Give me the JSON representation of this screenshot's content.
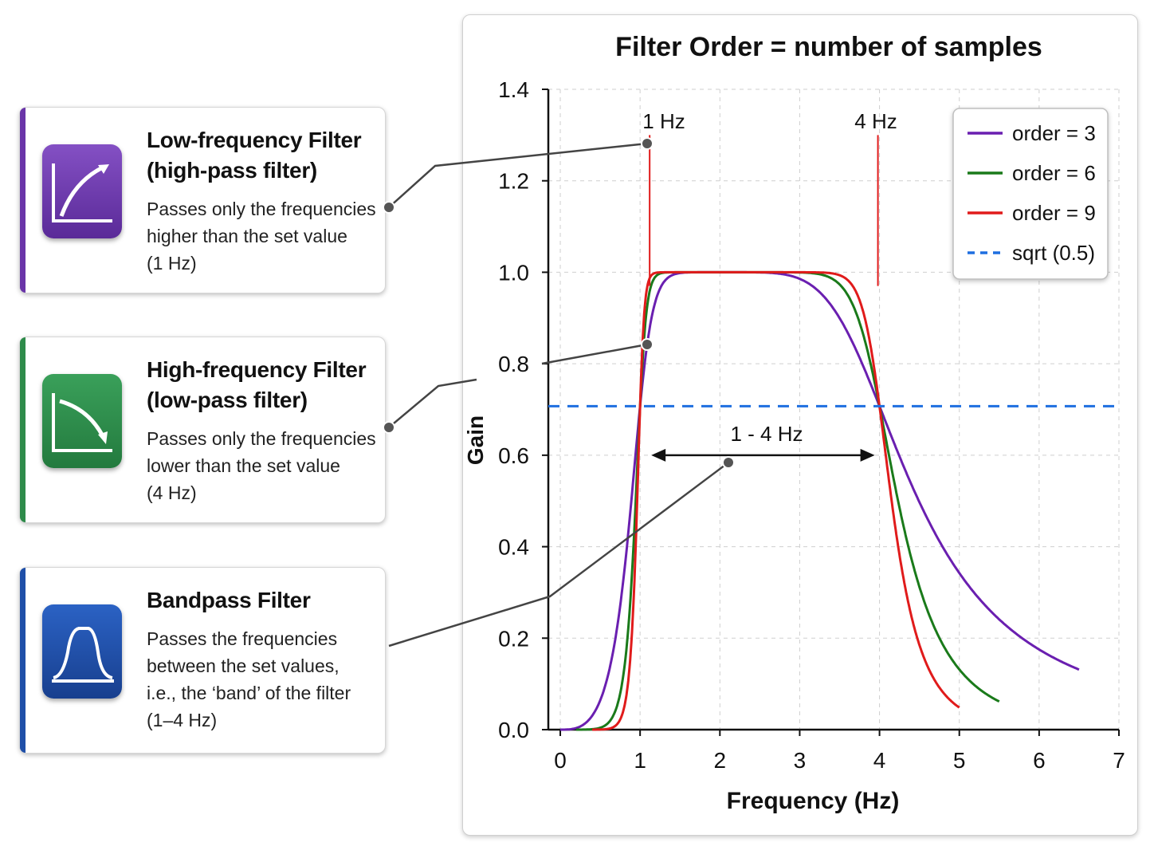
{
  "cards": [
    {
      "title_line1": "Low-frequency Filter",
      "title_line2": "(high-pass filter)",
      "desc": [
        "Passes only the frequencies",
        "higher than the set value",
        "(1 Hz)"
      ],
      "color": "#6a35a8",
      "icon": "rising-curve-icon"
    },
    {
      "title_line1": "High-frequency Filter",
      "title_line2": "(low-pass filter)",
      "desc": [
        "Passes only the frequencies",
        "lower than the set value",
        "(4 Hz)"
      ],
      "color": "#2e8b4a",
      "icon": "falling-curve-icon"
    },
    {
      "title_line1": "Bandpass Filter",
      "desc": [
        "Passes the frequencies",
        "between the set values,",
        "i.e., the ‘band’ of the filter",
        "(1–4 Hz)"
      ],
      "color": "#1f4fa8",
      "icon": "bandpass-shape-icon"
    }
  ],
  "chart_data": {
    "type": "line",
    "title": "Filter Order = number of samples",
    "xlabel": "Frequency (Hz)",
    "ylabel": "Gain",
    "xlim": [
      -0.15,
      7
    ],
    "ylim": [
      0,
      1.4
    ],
    "xticks": [
      "0",
      "1",
      "2",
      "3",
      "4",
      "5",
      "6",
      "7"
    ],
    "yticks": [
      "0.0",
      "0.2",
      "0.4",
      "0.6",
      "0.8",
      "1.0",
      "1.2",
      "1.4"
    ],
    "grid": true,
    "legend_position": "top-right",
    "lowcut": 1,
    "highcut": 4,
    "series": [
      {
        "name": "order = 3",
        "color": "#6a1fb0",
        "order": 3,
        "x_range": [
          0,
          6.5
        ]
      },
      {
        "name": "order = 6",
        "color": "#1a7a1a",
        "order": 6,
        "x_range": [
          0.2,
          5.5
        ]
      },
      {
        "name": "order = 9",
        "color": "#e01b1b",
        "order": 9,
        "x_range": [
          0.4,
          5
        ]
      },
      {
        "name": "sqrt (0.5)",
        "color": "#1e6fe0",
        "style": "dashed",
        "y": 0.7071
      }
    ],
    "annotations": {
      "low_cut": "1 Hz",
      "high_cut": "4 Hz",
      "band": "1 - 4 Hz"
    }
  }
}
